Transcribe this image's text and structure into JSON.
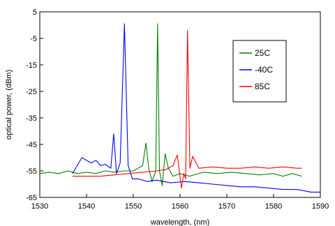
{
  "chart_data": {
    "type": "line",
    "xlabel": "wavelength, (nm)",
    "ylabel": "optical power, (dBm)",
    "xlim": [
      1530,
      1590
    ],
    "ylim": [
      -65,
      5
    ],
    "xticks": [
      "1530",
      "1540",
      "1550",
      "1560",
      "1570",
      "1580",
      "1590"
    ],
    "yticks": [
      "5",
      "-5",
      "-15",
      "-25",
      "-35",
      "-45",
      "-55",
      "-65"
    ],
    "grid": false,
    "legend_position": "top-right",
    "series": [
      {
        "name": "25C",
        "color": "#008000",
        "x": [
          1530,
          1532,
          1534,
          1536,
          1538,
          1540,
          1542,
          1544,
          1546,
          1548,
          1550,
          1551,
          1552,
          1552.7,
          1553.3,
          1554,
          1554.8,
          1555.2,
          1555.6,
          1556.2,
          1556.8,
          1557.5,
          1558.5,
          1560,
          1562,
          1565,
          1568,
          1571,
          1574,
          1577,
          1580,
          1582,
          1584,
          1586
        ],
        "y": [
          -56,
          -55.5,
          -56,
          -55,
          -56,
          -55.5,
          -56,
          -55,
          -55.5,
          -55,
          -55,
          -54,
          -53,
          -44.5,
          -54,
          -59,
          -55,
          0.5,
          -55,
          -60.5,
          -48.5,
          -54,
          -57,
          -56,
          -57,
          -55.5,
          -56,
          -55.5,
          -56,
          -56.5,
          -56,
          -57,
          -56,
          -57
        ]
      },
      {
        "name": "-40C",
        "color": "#0000ff",
        "x": [
          1537,
          1538,
          1539,
          1540,
          1541,
          1542,
          1543,
          1544,
          1545.2,
          1545.8,
          1546.4,
          1547.2,
          1548.1,
          1548.9,
          1549.8,
          1551,
          1553,
          1555,
          1558,
          1561,
          1564,
          1567,
          1570,
          1573,
          1576,
          1579,
          1582,
          1585,
          1588,
          1590
        ],
        "y": [
          -56,
          -53,
          -50,
          -51,
          -52,
          -51,
          -53,
          -52.5,
          -54,
          -41,
          -56,
          -52,
          0.5,
          -53,
          -58,
          -58,
          -59,
          -58.5,
          -59.5,
          -59,
          -59.5,
          -60,
          -60.5,
          -61,
          -61,
          -61.5,
          -62,
          -62,
          -63,
          -63
        ]
      },
      {
        "name": "85C",
        "color": "#ff0000",
        "x": [
          1537,
          1540,
          1543,
          1546,
          1549,
          1552,
          1555,
          1557,
          1558.5,
          1559.4,
          1560.3,
          1560.8,
          1561.2,
          1561.6,
          1562.1,
          1562.7,
          1564,
          1567,
          1570,
          1573,
          1576,
          1579,
          1582,
          1585,
          1586
        ],
        "y": [
          -57,
          -57,
          -57,
          -56.5,
          -56,
          -55.5,
          -55,
          -54.5,
          -53,
          -49,
          -61.5,
          -56,
          -58,
          -2,
          -54,
          -49.5,
          -54,
          -53.5,
          -54,
          -54,
          -53.5,
          -54,
          -53.5,
          -54,
          -54
        ]
      }
    ]
  }
}
